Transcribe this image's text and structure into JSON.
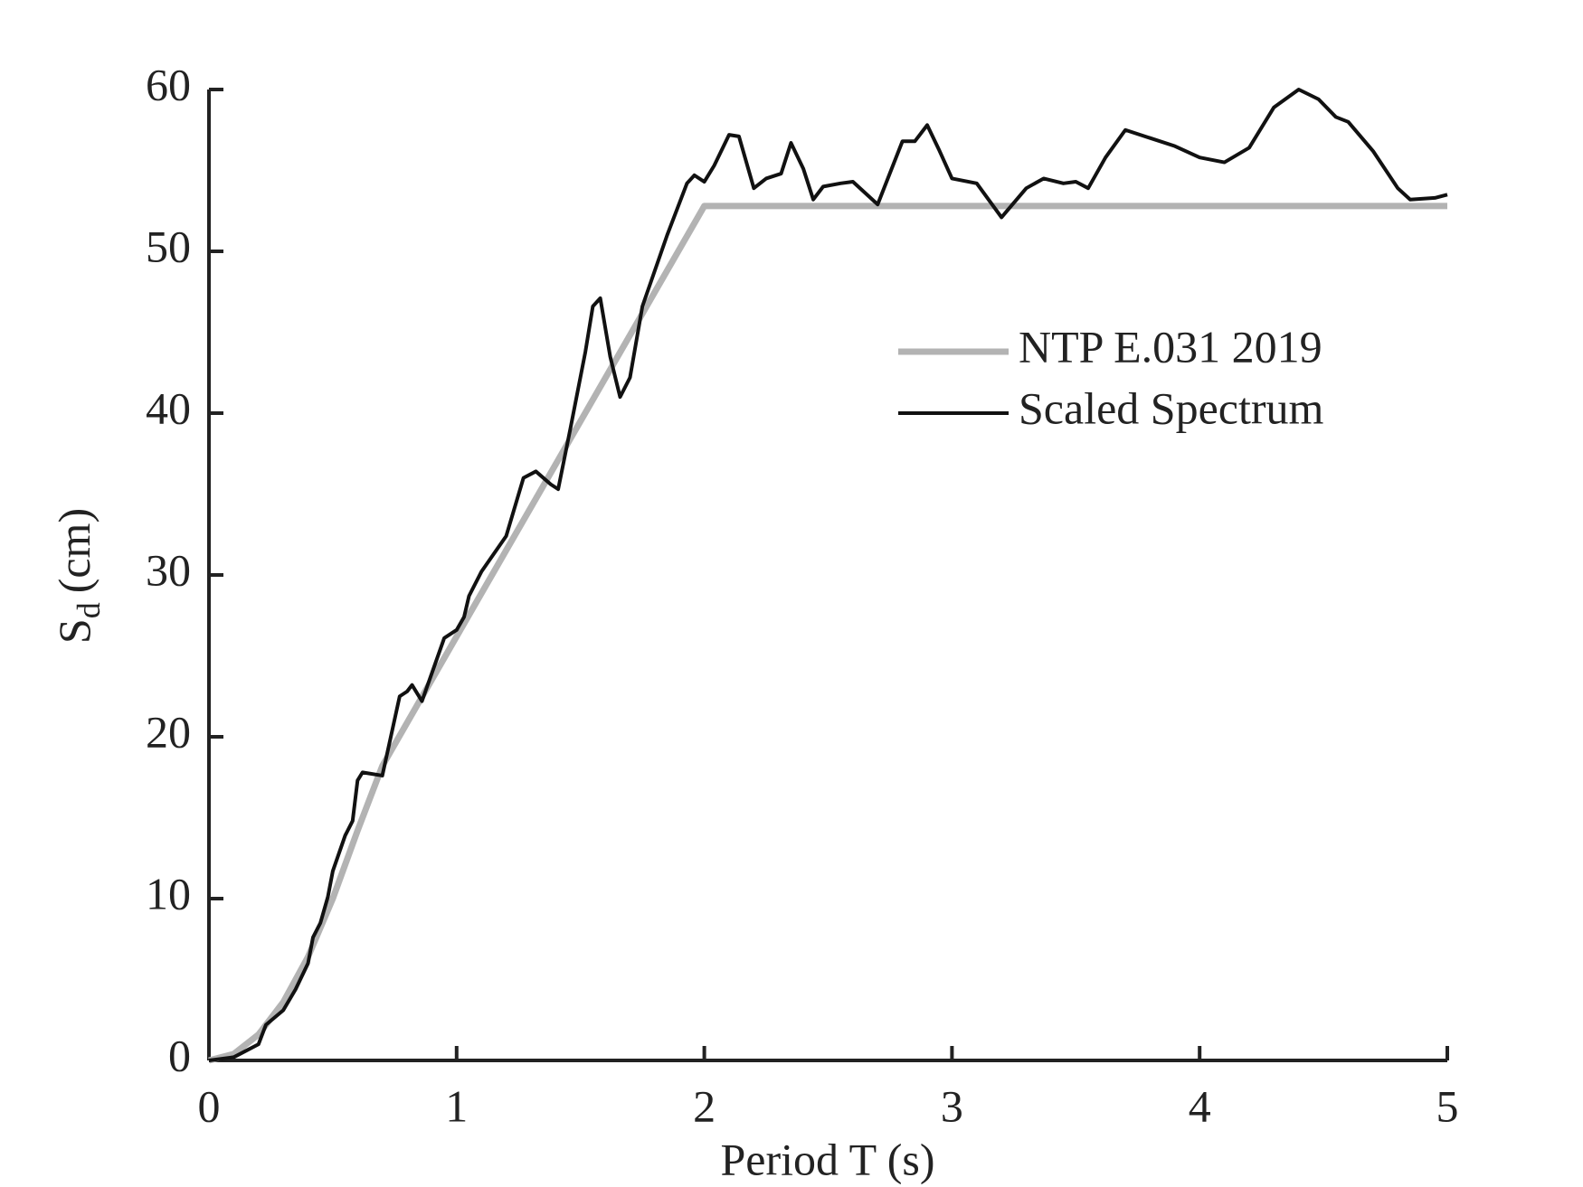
{
  "chart_data": {
    "type": "line",
    "xlabel": "Period T (s)",
    "ylabel_parts": [
      "S",
      "d",
      "(cm)"
    ],
    "xlim": [
      0,
      5
    ],
    "xticks": [
      0,
      1,
      2,
      3,
      4,
      5
    ],
    "ylim": [
      0,
      60
    ],
    "yticks": [
      0,
      10,
      20,
      30,
      40,
      50,
      60
    ],
    "grid": false,
    "legend": "upper right",
    "series": [
      {
        "name": "NTP E.031 2019",
        "color": "#b3b3b3",
        "x": [
          0,
          0.1,
          0.2,
          0.3,
          0.4,
          0.5,
          0.6,
          0.7,
          1.0,
          1.5,
          2.0,
          5.0
        ],
        "values": [
          0,
          0.4,
          1.6,
          3.6,
          6.4,
          10,
          14.2,
          18.2,
          26.2,
          39.5,
          52.8,
          52.8
        ]
      },
      {
        "name": "Scaled Spectrum",
        "color": "#111111",
        "x": [
          0,
          0.1,
          0.2,
          0.23,
          0.3,
          0.35,
          0.4,
          0.42,
          0.45,
          0.48,
          0.5,
          0.55,
          0.58,
          0.6,
          0.62,
          0.7,
          0.77,
          0.8,
          0.82,
          0.86,
          0.95,
          1.0,
          1.03,
          1.05,
          1.1,
          1.2,
          1.27,
          1.32,
          1.38,
          1.41,
          1.46,
          1.52,
          1.55,
          1.58,
          1.62,
          1.66,
          1.7,
          1.75,
          1.85,
          1.93,
          1.96,
          2.0,
          2.04,
          2.1,
          2.14,
          2.2,
          2.25,
          2.31,
          2.35,
          2.4,
          2.44,
          2.48,
          2.55,
          2.6,
          2.7,
          2.8,
          2.85,
          2.9,
          2.95,
          3.0,
          3.1,
          3.2,
          3.3,
          3.37,
          3.45,
          3.5,
          3.55,
          3.62,
          3.7,
          3.8,
          3.9,
          4.0,
          4.1,
          4.2,
          4.3,
          4.4,
          4.48,
          4.55,
          4.6,
          4.7,
          4.8,
          4.85,
          4.95,
          5.0
        ],
        "values": [
          0,
          0.2,
          1.0,
          2.2,
          3.1,
          4.4,
          6.0,
          7.6,
          8.5,
          10.1,
          11.7,
          13.9,
          14.8,
          17.3,
          17.8,
          17.6,
          22.5,
          22.8,
          23.2,
          22.2,
          26.1,
          26.6,
          27.4,
          28.7,
          30.2,
          32.4,
          36.0,
          36.4,
          35.6,
          35.3,
          39.1,
          43.8,
          46.6,
          47.1,
          43.5,
          41.0,
          42.2,
          46.6,
          51.0,
          54.2,
          54.7,
          54.3,
          55.3,
          57.2,
          57.1,
          53.9,
          54.5,
          54.8,
          56.7,
          55.1,
          53.2,
          54.0,
          54.2,
          54.3,
          52.9,
          56.8,
          56.8,
          57.8,
          56.2,
          54.5,
          54.2,
          52.1,
          53.9,
          54.5,
          54.2,
          54.3,
          53.9,
          55.8,
          57.5,
          57.0,
          56.5,
          55.8,
          55.5,
          56.4,
          58.9,
          60.0,
          59.4,
          58.3,
          58.0,
          56.2,
          53.9,
          53.2,
          53.3,
          53.5
        ]
      }
    ]
  }
}
